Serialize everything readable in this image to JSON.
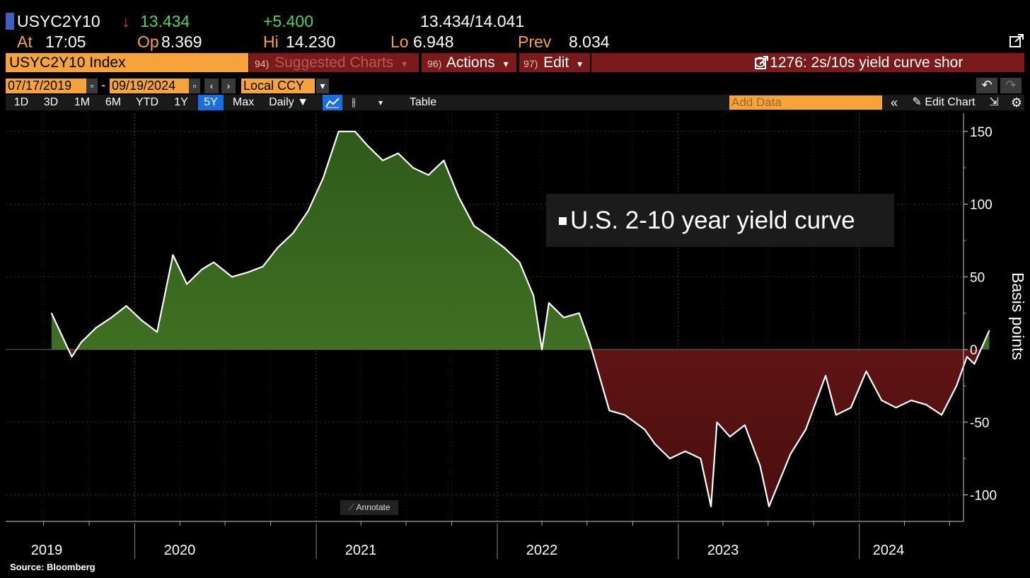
{
  "quote": {
    "ticker": "USYC2Y10",
    "arrow": "↓",
    "last": "13.434",
    "change": "+5.400",
    "bid_ask": "13.434/14.041",
    "at_label": "At",
    "at_time": "17:05",
    "open_label": "Op",
    "open": "8.369",
    "high_label": "Hi",
    "high": "14.230",
    "low_label": "Lo",
    "low": "6.948",
    "prev_label": "Prev",
    "prev": "8.034"
  },
  "menu": {
    "ticker_label": "USYC2Y10 Index",
    "suggested_num": "94)",
    "suggested_label": "Suggested Charts",
    "actions_num": "96)",
    "actions_label": "Actions",
    "edit_num": "97)",
    "edit_label": "Edit",
    "caret": "▾",
    "chart_title": "G 1276: 2s/10s yield curve shor"
  },
  "dates": {
    "start": "07/17/2019",
    "end": "09/19/2024",
    "currency": "Local CCY"
  },
  "periods": [
    "1D",
    "3D",
    "1M",
    "6M",
    "YTD",
    "1Y",
    "5Y",
    "Max"
  ],
  "selected_period": "5Y",
  "toolbar": {
    "frequency": "Daily ▼",
    "table": "Table",
    "add_data_placeholder": "Add Data",
    "edit_chart": "Edit Chart",
    "annotate": "Annotate"
  },
  "colors": {
    "orange": "#f5a33a",
    "positive_fill": "#4b7f2a",
    "negative_fill": "#7e1c1c",
    "selected": "#1a6ee0"
  },
  "source": "Source: Bloomberg",
  "chart_data": {
    "type": "area",
    "title": "",
    "legend": "U.S. 2-10 year yield curve",
    "xlabel": "",
    "ylabel": "Basis points",
    "ylim": [
      -120,
      158
    ],
    "x_ticks": [
      "2019",
      "2020",
      "2021",
      "2022",
      "2023",
      "2024"
    ],
    "y_ticks": [
      150,
      100,
      50,
      0,
      -50,
      -100
    ],
    "x": [
      "2019-07-17",
      "2019-08-27",
      "2019-09-15",
      "2019-10-15",
      "2019-11-15",
      "2019-12-15",
      "2020-01-15",
      "2020-02-15",
      "2020-03-09",
      "2020-03-18",
      "2020-04-15",
      "2020-05-15",
      "2020-06-08",
      "2020-07-15",
      "2020-08-15",
      "2020-09-15",
      "2020-10-15",
      "2020-11-15",
      "2020-12-15",
      "2021-01-15",
      "2021-02-15",
      "2021-03-20",
      "2021-04-15",
      "2021-05-15",
      "2021-06-15",
      "2021-07-15",
      "2021-08-15",
      "2021-09-15",
      "2021-10-15",
      "2021-11-15",
      "2021-12-15",
      "2022-01-15",
      "2022-02-15",
      "2022-03-15",
      "2022-04-01",
      "2022-04-15",
      "2022-05-15",
      "2022-06-15",
      "2022-07-06",
      "2022-08-15",
      "2022-09-15",
      "2022-10-25",
      "2022-11-15",
      "2022-12-15",
      "2023-01-15",
      "2023-02-15",
      "2023-03-08",
      "2023-03-20",
      "2023-04-15",
      "2023-05-15",
      "2023-06-15",
      "2023-07-03",
      "2023-08-15",
      "2023-09-15",
      "2023-10-25",
      "2023-11-15",
      "2023-12-15",
      "2024-01-15",
      "2024-02-15",
      "2024-03-15",
      "2024-04-15",
      "2024-05-15",
      "2024-06-15",
      "2024-07-15",
      "2024-08-05",
      "2024-08-20",
      "2024-09-06",
      "2024-09-19"
    ],
    "values": [
      25,
      -5,
      5,
      15,
      22,
      30,
      20,
      12,
      50,
      65,
      45,
      55,
      60,
      50,
      53,
      57,
      70,
      80,
      95,
      118,
      150,
      150,
      140,
      130,
      135,
      125,
      120,
      130,
      105,
      85,
      78,
      70,
      60,
      37,
      0,
      32,
      22,
      25,
      5,
      -42,
      -45,
      -55,
      -65,
      -75,
      -70,
      -75,
      -108,
      -50,
      -60,
      -52,
      -80,
      -108,
      -72,
      -55,
      -18,
      -45,
      -40,
      -15,
      -35,
      -40,
      -35,
      -38,
      -45,
      -25,
      -5,
      -10,
      3,
      13
    ]
  }
}
